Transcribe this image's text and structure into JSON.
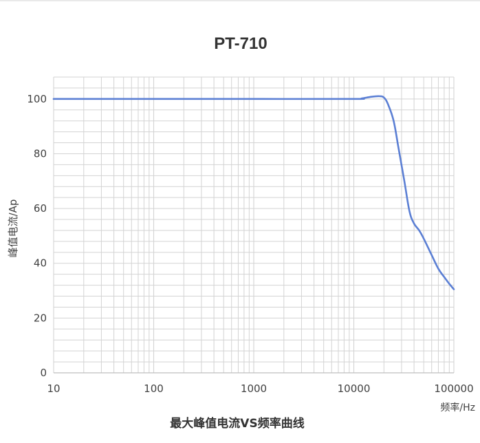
{
  "chart_data": {
    "type": "line",
    "title": "PT-710",
    "subtitle": "最大峰值电流VS频率曲线",
    "ylabel": "峰值电流/Ap",
    "xlabel": "频率/Hz",
    "xscale": "log",
    "xlim": [
      10,
      100000
    ],
    "ylim": [
      0,
      108
    ],
    "grid": true,
    "legend": "none",
    "x_ticks": [
      {
        "value": 10,
        "label": "10"
      },
      {
        "value": 100,
        "label": "100"
      },
      {
        "value": 1000,
        "label": "1000"
      },
      {
        "value": 10000,
        "label": "10000"
      },
      {
        "value": 100000,
        "label": "100000"
      }
    ],
    "y_ticks": [
      {
        "value": 0,
        "label": "0"
      },
      {
        "value": 20,
        "label": "20"
      },
      {
        "value": 40,
        "label": "40"
      },
      {
        "value": 60,
        "label": "60"
      },
      {
        "value": 80,
        "label": "80"
      },
      {
        "value": 100,
        "label": "100"
      }
    ],
    "series": [
      {
        "color": "#5b7fd4",
        "x": [
          10,
          100,
          1000,
          10000,
          12000,
          15000,
          18000,
          20000,
          22000,
          25000,
          28000,
          32000,
          36000,
          40000,
          45000,
          50000,
          60000,
          70000,
          80000,
          90000,
          100000
        ],
        "y": [
          100,
          100,
          100,
          100,
          100.2,
          100.8,
          101,
          100.5,
          98,
          92,
          82,
          70,
          59,
          54.5,
          52,
          49,
          43,
          38,
          35,
          32.5,
          30.5
        ]
      }
    ]
  },
  "colors": {
    "grid": "#d3d3d3",
    "tick_text": "#404040",
    "title_text": "#333333"
  }
}
